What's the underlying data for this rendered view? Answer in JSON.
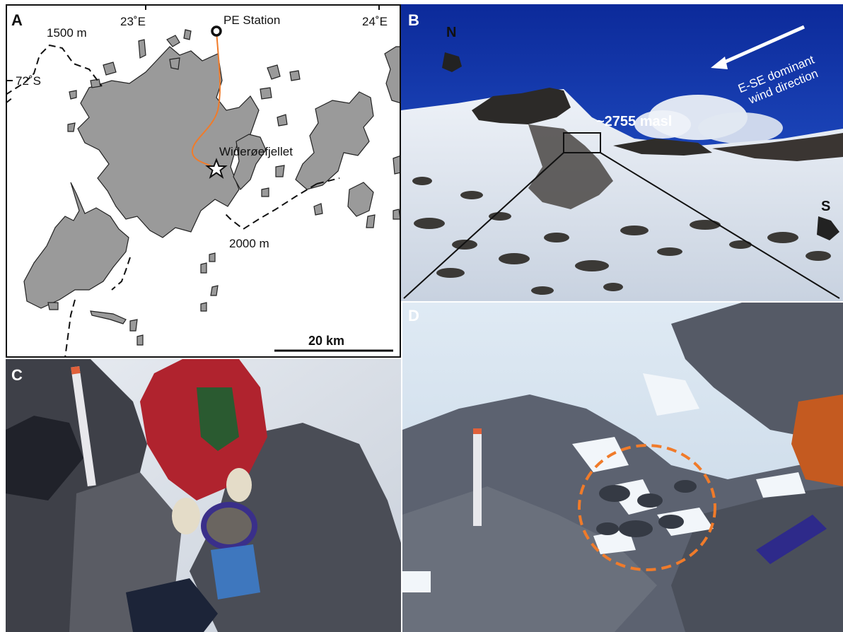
{
  "panels": {
    "a": {
      "label": "A",
      "station_label": "PE Station",
      "site_label": "Widerøefjellet",
      "contour_upper": "1500 m",
      "contour_lower": "2000 m",
      "lon_left": "23˚E",
      "lon_right": "24˚E",
      "lat": "72˚S",
      "scale_label": "20 km"
    },
    "b": {
      "label": "B",
      "north_label": "N",
      "south_label": "S",
      "elevation_label": "~2755 masl",
      "wind_label_line1": "E-SE dominant",
      "wind_label_line2": "wind direction"
    },
    "c": {
      "label": "C"
    },
    "d": {
      "label": "D"
    }
  },
  "colors": {
    "rock_fill": "#9a9a9a",
    "route_line": "#f07b2a",
    "sample_circle": "#f07b2a",
    "sky_blue": "#1a3fb0"
  }
}
